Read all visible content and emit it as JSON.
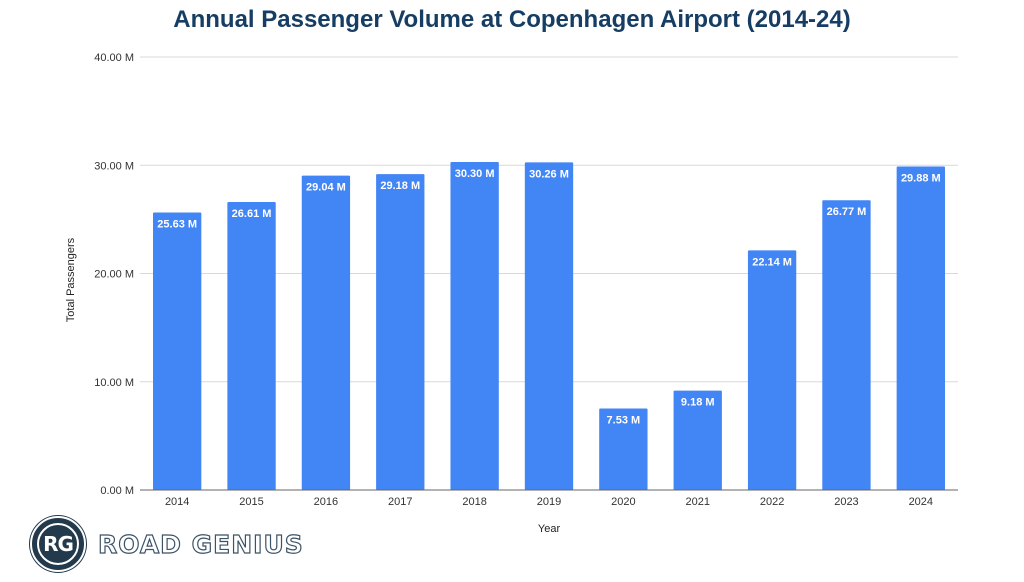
{
  "chart_data": {
    "type": "bar",
    "title": "Annual Passenger Volume at Copenhagen Airport (2014-24)",
    "xlabel": "Year",
    "ylabel": "Total Passengers",
    "categories": [
      "2014",
      "2015",
      "2016",
      "2017",
      "2018",
      "2019",
      "2020",
      "2021",
      "2022",
      "2023",
      "2024"
    ],
    "values": [
      25.63,
      26.61,
      29.04,
      29.18,
      30.3,
      30.26,
      7.53,
      9.18,
      22.14,
      26.77,
      29.88
    ],
    "value_labels": [
      "25.63 M",
      "26.61 M",
      "29.04 M",
      "29.18 M",
      "30.30 M",
      "30.26 M",
      "7.53 M",
      "9.18 M",
      "22.14 M",
      "26.77 M",
      "29.88 M"
    ],
    "unit": "M",
    "ylim": [
      0,
      40
    ],
    "yticks": [
      0,
      10,
      20,
      30,
      40
    ],
    "ytick_labels": [
      "0.00 M",
      "10.00 M",
      "20.00 M",
      "30.00 M",
      "40.00 M"
    ],
    "grid": true,
    "legend": "none",
    "bar_color": "#4285f4"
  },
  "branding": {
    "logo_initials": "RG",
    "logo_text": "ROAD GENIUS"
  }
}
